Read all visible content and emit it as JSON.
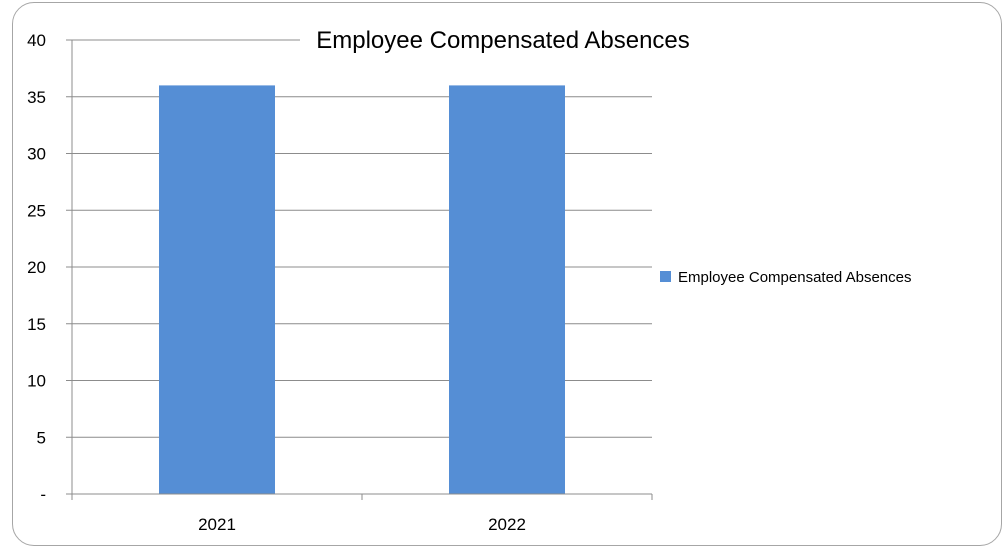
{
  "chart_data": {
    "type": "bar",
    "title": "Employee Compensated Absences",
    "categories": [
      "2021",
      "2022"
    ],
    "series": [
      {
        "name": "Employee Compensated Absences",
        "values": [
          36,
          36
        ],
        "color": "#558ed5"
      }
    ],
    "ylim": [
      0,
      40
    ],
    "yticks": [
      0,
      5,
      10,
      15,
      20,
      25,
      30,
      35,
      40
    ],
    "ytick_labels": [
      "-",
      "5",
      "10",
      "15",
      "20",
      "25",
      "30",
      "35",
      "40"
    ],
    "grid": true,
    "legend_position": "right"
  }
}
